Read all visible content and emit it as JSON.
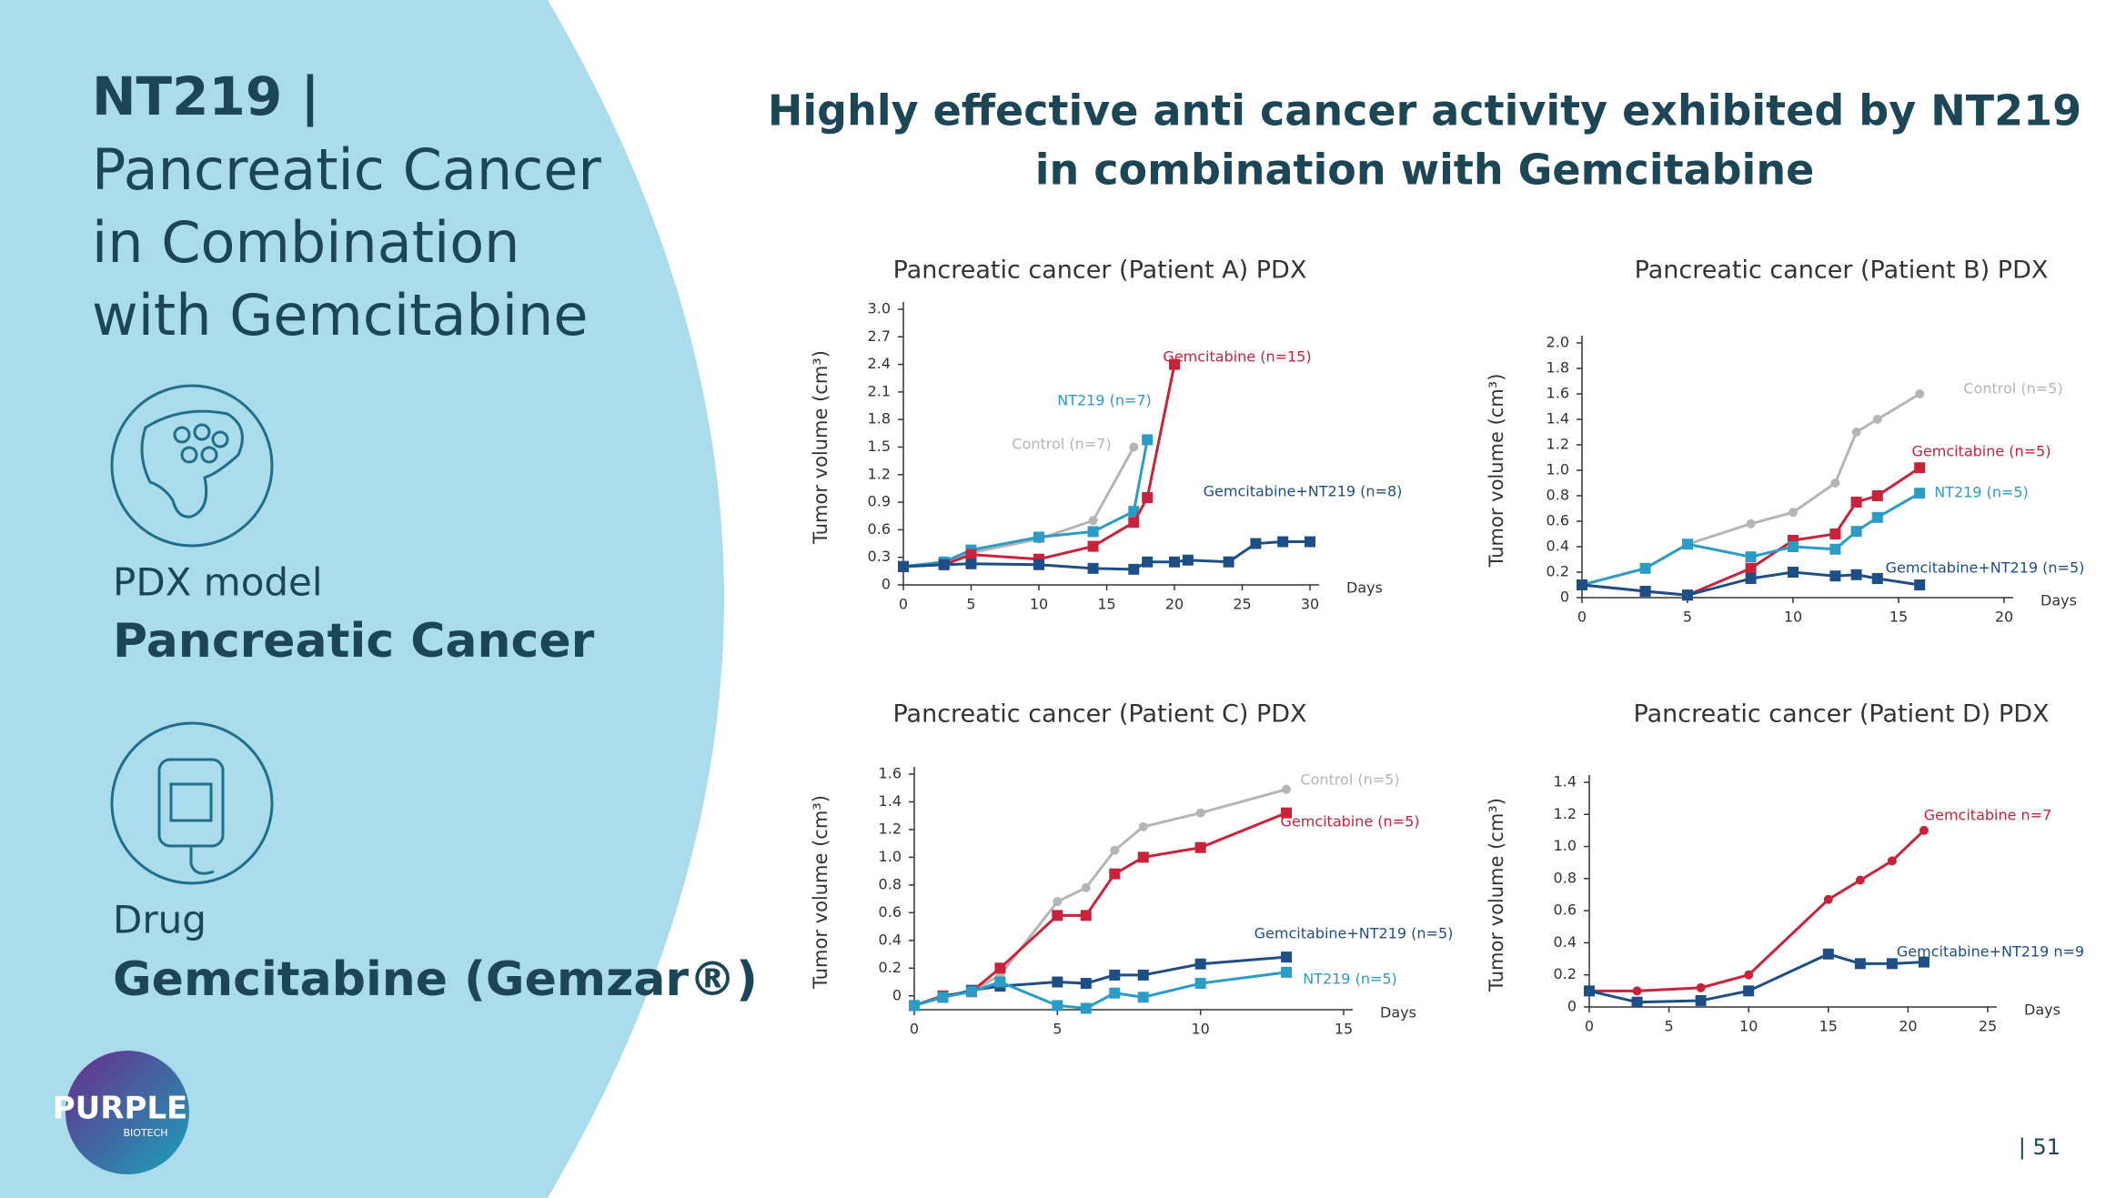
{
  "slide": {
    "title": "NT219 |",
    "subtitle_lines": [
      "Pancreatic Cancer",
      "in Combination",
      "with Gemcitabine"
    ],
    "heading_lines": [
      "Highly effective anti cancer activity exhibited by NT219",
      "in combination with Gemcitabine"
    ],
    "model_label": "PDX model",
    "model": "Pancreatic Cancer",
    "drug_label": "Drug",
    "drug": "Gemcitabine (Gemzar®)",
    "logo": "PURPLE",
    "logo_sub": "BIOTECH",
    "page": "| 51"
  },
  "chart_data": [
    {
      "type": "line",
      "title": "Pancreatic cancer (Patient A) PDX",
      "x_label": "Days",
      "y_label": "Tumor volume (cm³)",
      "xlim": [
        0,
        30
      ],
      "xticks": [
        0,
        5,
        10,
        15,
        20,
        25,
        30
      ],
      "ylim": [
        0,
        3
      ],
      "yticks": [
        0,
        0.3,
        0.6,
        0.9,
        1.2,
        1.5,
        1.8,
        2.1,
        2.4,
        2.7,
        {
          "value": 3,
          "label": "3.0"
        }
      ],
      "series": [
        {
          "name": "Control (n=7)",
          "color": "#b5b5b5",
          "marker": "circle",
          "x": [
            0,
            3,
            5,
            10,
            14,
            17
          ],
          "values": [
            0.2,
            0.25,
            0.35,
            0.5,
            0.7,
            1.5
          ]
        },
        {
          "name": "NT219 (n=7)",
          "color": "#2b9cc6",
          "marker": "square",
          "x": [
            0,
            3,
            5,
            10,
            14,
            17,
            18
          ],
          "values": [
            0.2,
            0.25,
            0.38,
            0.52,
            0.58,
            0.8,
            1.58
          ]
        },
        {
          "name": "Gemcitabine (n=15)",
          "color": "#c8233a",
          "marker": "square",
          "x": [
            0,
            3,
            5,
            10,
            14,
            17,
            18,
            20
          ],
          "values": [
            0.2,
            0.22,
            0.33,
            0.28,
            0.42,
            0.68,
            0.95,
            2.4
          ]
        },
        {
          "name": "Gemcitabine+NT219 (n=8)",
          "color": "#1d4f86",
          "marker": "square",
          "x": [
            0,
            3,
            5,
            10,
            14,
            17,
            18,
            20,
            21,
            24,
            26,
            28,
            30
          ],
          "values": [
            0.2,
            0.22,
            0.23,
            0.22,
            0.18,
            0.17,
            0.25,
            0.25,
            0.27,
            0.25,
            0.45,
            0.47,
            0.47
          ]
        }
      ]
    },
    {
      "type": "line",
      "title": "Pancreatic cancer (Patient B) PDX",
      "x_label": "Days",
      "y_label": "Tumor volume (cm³)",
      "xlim": [
        0,
        20
      ],
      "xticks": [
        0,
        5,
        10,
        15,
        20
      ],
      "ylim": [
        0,
        2
      ],
      "yticks": [
        0,
        0.2,
        0.4,
        0.6,
        0.8,
        {
          "value": 1,
          "label": "1.0"
        },
        1.2,
        1.4,
        1.6,
        1.8,
        {
          "value": 2,
          "label": "2.0"
        }
      ],
      "series": [
        {
          "name": "Control (n=5)",
          "color": "#b5b5b5",
          "marker": "circle",
          "x": [
            0,
            3,
            5,
            8,
            10,
            12,
            13,
            14,
            16
          ],
          "values": [
            0.1,
            0.23,
            0.42,
            0.58,
            0.67,
            0.9,
            1.3,
            1.4,
            1.6
          ]
        },
        {
          "name": "Gemcitabine (n=5)",
          "color": "#c8233a",
          "marker": "square",
          "x": [
            0,
            3,
            5,
            8,
            10,
            12,
            13,
            14,
            16
          ],
          "values": [
            0.1,
            0.05,
            0.02,
            0.23,
            0.45,
            0.5,
            0.75,
            0.8,
            1.02
          ]
        },
        {
          "name": "NT219 (n=5)",
          "color": "#2b9cc6",
          "marker": "square",
          "x": [
            0,
            3,
            5,
            8,
            10,
            12,
            13,
            14,
            16
          ],
          "values": [
            0.1,
            0.23,
            0.42,
            0.32,
            0.4,
            0.38,
            0.52,
            0.63,
            0.82
          ]
        },
        {
          "name": "Gemcitabine+NT219 (n=5)",
          "color": "#1d4f86",
          "marker": "square",
          "x": [
            0,
            3,
            5,
            8,
            10,
            12,
            13,
            14,
            16
          ],
          "values": [
            0.1,
            0.05,
            0.02,
            0.15,
            0.2,
            0.17,
            0.18,
            0.15,
            0.1
          ]
        }
      ]
    },
    {
      "type": "line",
      "title": "Pancreatic cancer (Patient C) PDX",
      "x_label": "Days",
      "y_label": "Tumor volume (cm³)",
      "xlim": [
        0,
        15
      ],
      "xticks": [
        0,
        5,
        10,
        15
      ],
      "ylim": [
        -0.1,
        1.6
      ],
      "yticks": [
        0,
        0.2,
        0.4,
        0.6,
        0.8,
        {
          "value": 1,
          "label": "1.0"
        },
        1.2,
        1.4,
        1.6
      ],
      "series": [
        {
          "name": "Control (n=5)",
          "color": "#b5b5b5",
          "marker": "circle",
          "x": [
            0,
            1,
            2,
            3,
            5,
            6,
            7,
            8,
            10,
            13
          ],
          "values": [
            -0.07,
            0,
            0.03,
            0.15,
            0.68,
            0.78,
            1.05,
            1.22,
            1.32,
            1.49
          ]
        },
        {
          "name": "Gemcitabine (n=5)",
          "color": "#c8233a",
          "marker": "square",
          "x": [
            0,
            1,
            2,
            3,
            5,
            6,
            7,
            8,
            10,
            13
          ],
          "values": [
            -0.07,
            0,
            0.03,
            0.2,
            0.58,
            0.58,
            0.88,
            1,
            1.07,
            1.32
          ]
        },
        {
          "name": "Gemcitabine+NT219 (n=5)",
          "color": "#1d4f86",
          "marker": "square",
          "x": [
            0,
            1,
            2,
            3,
            5,
            6,
            7,
            8,
            10,
            13
          ],
          "values": [
            -0.07,
            -0.01,
            0.04,
            0.07,
            0.1,
            0.09,
            0.15,
            0.15,
            0.23,
            0.28
          ]
        },
        {
          "name": "NT219 (n=5)",
          "color": "#2b9cc6",
          "marker": "square",
          "x": [
            0,
            1,
            2,
            3,
            5,
            6,
            7,
            8,
            10,
            13
          ],
          "values": [
            -0.07,
            -0.01,
            0.03,
            0.1,
            -0.07,
            -0.09,
            0.02,
            -0.01,
            0.09,
            0.17
          ]
        }
      ]
    },
    {
      "type": "line",
      "title": "Pancreatic cancer (Patient D) PDX",
      "x_label": "Days",
      "y_label": "Tumor volume (cm³)",
      "xlim": [
        0,
        25
      ],
      "xticks": [
        0,
        5,
        10,
        15,
        20,
        25
      ],
      "ylim": [
        0,
        1.4
      ],
      "yticks": [
        0,
        0.2,
        0.4,
        0.6,
        0.8,
        {
          "value": 1,
          "label": "1.0"
        },
        1.2,
        1.4
      ],
      "series": [
        {
          "name": "Gemcitabine n=7",
          "color": "#c8233a",
          "marker": "circle",
          "x": [
            0,
            3,
            7,
            10,
            15,
            17,
            19,
            21
          ],
          "values": [
            0.1,
            0.1,
            0.12,
            0.2,
            0.67,
            0.79,
            0.91,
            1.1
          ]
        },
        {
          "name": "Gemcitabine+NT219 n=9",
          "color": "#1d4f86",
          "marker": "square",
          "x": [
            0,
            3,
            7,
            10,
            15,
            17,
            19,
            21
          ],
          "values": [
            0.1,
            0.03,
            0.04,
            0.1,
            0.33,
            0.27,
            0.27,
            0.28
          ]
        }
      ]
    }
  ]
}
